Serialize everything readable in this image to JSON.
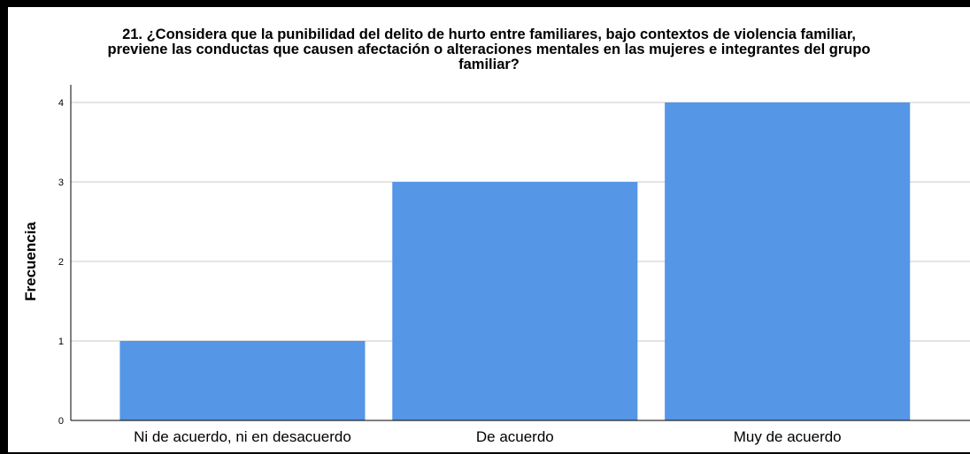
{
  "chart_data": {
    "type": "bar",
    "title": "21. ¿Considera que la punibilidad del delito de hurto entre familiares, bajo contextos de violencia familiar,\npreviene las conductas que causen afectación o alteraciones mentales en las mujeres e integrantes del grupo\nfamiliar?",
    "categories": [
      "Ni de acuerdo, ni en desacuerdo",
      "De acuerdo",
      "Muy de acuerdo"
    ],
    "values": [
      1,
      3,
      4
    ],
    "xlabel": "",
    "ylabel": "Frecuencia",
    "ylim": [
      0,
      4
    ],
    "yticks": [
      0,
      1,
      2,
      3,
      4
    ],
    "grid": true,
    "bar_color": "#5596e6"
  }
}
